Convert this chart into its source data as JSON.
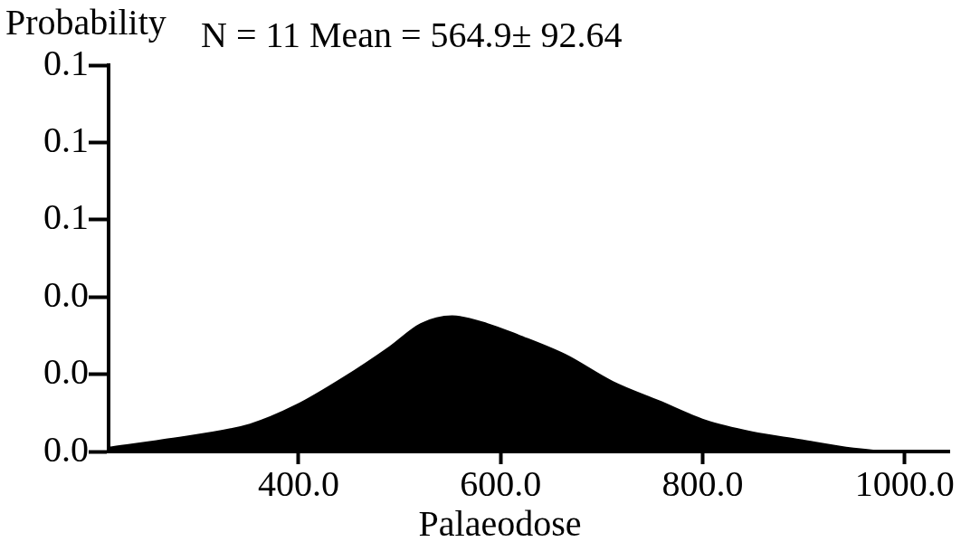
{
  "chart_data": {
    "type": "area",
    "title": "N = 11 Mean = 564.9± 92.64",
    "ylabel": "Probability",
    "xlabel": "Palaeodose",
    "x": [
      212,
      266,
      352,
      398,
      444,
      490,
      521,
      552,
      587,
      618,
      664,
      711,
      757,
      803,
      849,
      896,
      942,
      988,
      1044
    ],
    "series": [
      {
        "color": "#000000",
        "values": [
          0.001,
          0.003,
          0.007,
          0.012,
          0.019,
          0.027,
          0.033,
          0.035,
          0.033,
          0.03,
          0.025,
          0.018,
          0.013,
          0.008,
          0.005,
          0.003,
          0.001,
          0.0,
          0.0
        ]
      }
    ],
    "xlim": [
      212,
      1044
    ],
    "xticks": [
      {
        "value": 400,
        "label": "400.0"
      },
      {
        "value": 600,
        "label": "600.0"
      },
      {
        "value": 800,
        "label": "800.0"
      },
      {
        "value": 1000,
        "label": "1000.0"
      }
    ],
    "ylim": [
      0,
      0.1
    ],
    "yticks": [
      {
        "value": 0,
        "label": "0.0"
      },
      {
        "value": 0.02,
        "label": "0.0"
      },
      {
        "value": 0.04,
        "label": "0.0"
      },
      {
        "value": 0.06,
        "label": "0.1"
      },
      {
        "value": 0.08,
        "label": "0.1"
      },
      {
        "value": 0.1,
        "label": "0.1"
      }
    ],
    "grid": false,
    "legend": false
  }
}
